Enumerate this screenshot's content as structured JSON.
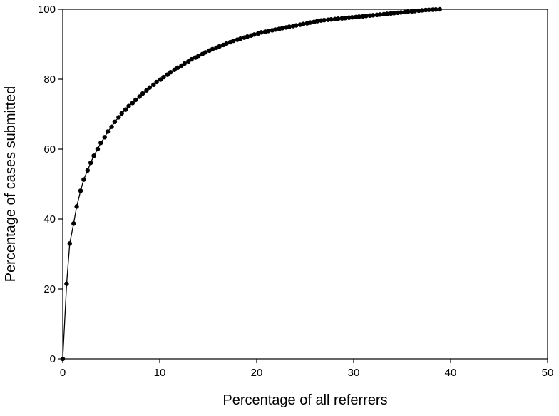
{
  "chart_data": {
    "type": "line",
    "title": "",
    "xlabel": "Percentage of all referrers",
    "ylabel": "Percentage of cases submitted",
    "xlim": [
      0,
      50
    ],
    "ylim": [
      0,
      100
    ],
    "xticks": [
      "0",
      "10",
      "20",
      "30",
      "40",
      "50"
    ],
    "yticks": [
      "0",
      "20",
      "40",
      "60",
      "80",
      "100"
    ],
    "grid": false,
    "legend": "none",
    "marker": "filled-circle",
    "line_color": "#000000",
    "series": [
      {
        "x": [
          0.0,
          0.4,
          0.72,
          1.12,
          1.44,
          1.84,
          2.16,
          2.56,
          2.88,
          3.2,
          3.6,
          3.92,
          4.32,
          4.64,
          5.04,
          5.36,
          5.76,
          6.08,
          6.48,
          6.8,
          7.2,
          7.52,
          7.92,
          8.24,
          8.64,
          8.96,
          9.36,
          9.68,
          10.08,
          10.4,
          10.8,
          11.12,
          11.52,
          11.84,
          12.24,
          12.56,
          12.96,
          13.28,
          13.68,
          14.0,
          14.4,
          14.72,
          15.12,
          15.44,
          15.84,
          16.16,
          16.56,
          16.88,
          17.28,
          17.6,
          18.0,
          18.32,
          18.72,
          19.04,
          19.44,
          19.76,
          20.16,
          20.48,
          20.88,
          21.2,
          21.6,
          21.92,
          22.32,
          22.64,
          23.04,
          23.36,
          23.76,
          24.08,
          24.48,
          24.8,
          25.2,
          25.52,
          25.92,
          26.24,
          26.64,
          26.96,
          27.36,
          27.68,
          28.08,
          28.4,
          28.8,
          29.12,
          29.52,
          29.84,
          30.24,
          30.56,
          30.96,
          31.28,
          31.68,
          32.0,
          32.4,
          32.72,
          33.12,
          33.44,
          33.84,
          34.16,
          34.56,
          34.88,
          35.28,
          35.6,
          36.0,
          36.32,
          36.72,
          37.04,
          37.44,
          37.76,
          38.16,
          38.48,
          38.88
        ],
        "values": [
          0.0,
          21.5,
          33.0,
          38.7,
          43.6,
          48.1,
          51.3,
          53.9,
          56.1,
          58.1,
          60.0,
          61.8,
          63.4,
          65.0,
          66.4,
          67.8,
          69.1,
          70.2,
          71.3,
          72.3,
          73.2,
          74.1,
          75.0,
          75.9,
          76.8,
          77.6,
          78.4,
          79.2,
          79.9,
          80.6,
          81.3,
          82.0,
          82.7,
          83.3,
          83.9,
          84.5,
          85.1,
          85.7,
          86.2,
          86.7,
          87.2,
          87.7,
          88.2,
          88.6,
          89.0,
          89.4,
          89.8,
          90.2,
          90.6,
          91.0,
          91.3,
          91.6,
          91.9,
          92.2,
          92.5,
          92.8,
          93.1,
          93.4,
          93.6,
          93.8,
          94.0,
          94.2,
          94.4,
          94.6,
          94.8,
          95.0,
          95.2,
          95.4,
          95.6,
          95.8,
          96.0,
          96.2,
          96.4,
          96.6,
          96.8,
          96.9,
          97.0,
          97.1,
          97.2,
          97.3,
          97.4,
          97.5,
          97.6,
          97.7,
          97.8,
          97.9,
          98.0,
          98.1,
          98.2,
          98.3,
          98.4,
          98.5,
          98.6,
          98.7,
          98.8,
          98.9,
          99.0,
          99.1,
          99.2,
          99.3,
          99.4,
          99.5,
          99.6,
          99.7,
          99.8,
          99.85,
          99.9,
          99.95,
          100.0
        ]
      }
    ]
  }
}
